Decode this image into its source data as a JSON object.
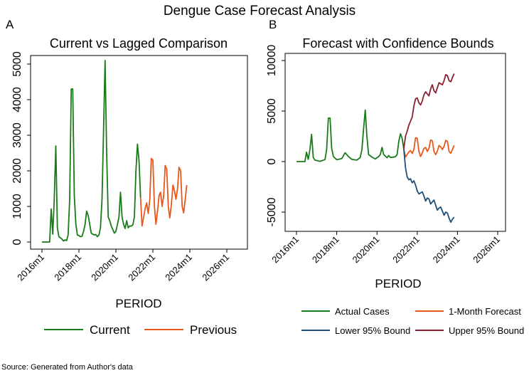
{
  "figure": {
    "title": "Dengue Case Forecast Analysis",
    "source": "Source: Generated from Author's data",
    "colors": {
      "green": "#1a7a1a",
      "orange": "#e8581c",
      "blue": "#1f4e79",
      "maroon": "#8b2030"
    }
  },
  "chart_data": [
    {
      "panel_letter": "A",
      "type": "line",
      "title": "Current vs Lagged Comparison",
      "xlabel": "PERIOD",
      "ylabel": "",
      "x_unit": "months since 2016m1",
      "xlim": [
        "2016m1",
        "2026m1"
      ],
      "ylim": [
        0,
        5000
      ],
      "x_ticks": [
        "2016m1",
        "2018m1",
        "2020m1",
        "2022m1",
        "2024m1",
        "2026m1"
      ],
      "y_ticks": [
        "0",
        "1000",
        "2000",
        "3000",
        "4000",
        "5000"
      ],
      "grid": false,
      "legend": "bottom",
      "series": [
        {
          "name": "Current",
          "color": "#1a7a1a",
          "points": [
            [
              "2016m1",
              0
            ],
            [
              "2016m4",
              0
            ],
            [
              "2016m6",
              0
            ],
            [
              "2016m7",
              930
            ],
            [
              "2016m8",
              220
            ],
            [
              "2016m9",
              1200
            ],
            [
              "2016m10",
              2700
            ],
            [
              "2016m11",
              400
            ],
            [
              "2016m12",
              150
            ],
            [
              "2017m1",
              120
            ],
            [
              "2017m2",
              80
            ],
            [
              "2017m3",
              30
            ],
            [
              "2017m4",
              60
            ],
            [
              "2017m5",
              40
            ],
            [
              "2017m6",
              200
            ],
            [
              "2017m7",
              1200
            ],
            [
              "2017m8",
              4300
            ],
            [
              "2017m9",
              4300
            ],
            [
              "2017m10",
              1300
            ],
            [
              "2017m11",
              500
            ],
            [
              "2017m12",
              200
            ],
            [
              "2018m1",
              180
            ],
            [
              "2018m2",
              150
            ],
            [
              "2018m3",
              160
            ],
            [
              "2018m4",
              300
            ],
            [
              "2018m5",
              500
            ],
            [
              "2018m6",
              870
            ],
            [
              "2018m7",
              750
            ],
            [
              "2018m8",
              500
            ],
            [
              "2018m9",
              250
            ],
            [
              "2018m10",
              220
            ],
            [
              "2018m11",
              200
            ],
            [
              "2018m12",
              210
            ],
            [
              "2019m1",
              150
            ],
            [
              "2019m2",
              200
            ],
            [
              "2019m3",
              400
            ],
            [
              "2019m4",
              1200
            ],
            [
              "2019m5",
              3200
            ],
            [
              "2019m6",
              5100
            ],
            [
              "2019m7",
              2500
            ],
            [
              "2019m8",
              700
            ],
            [
              "2019m9",
              600
            ],
            [
              "2019m10",
              450
            ],
            [
              "2019m11",
              350
            ],
            [
              "2019m12",
              250
            ],
            [
              "2020m1",
              300
            ],
            [
              "2020m2",
              500
            ],
            [
              "2020m3",
              700
            ],
            [
              "2020m4",
              1400
            ],
            [
              "2020m5",
              700
            ],
            [
              "2020m6",
              500
            ],
            [
              "2020m7",
              380
            ],
            [
              "2020m8",
              600
            ],
            [
              "2020m9",
              400
            ],
            [
              "2020m10",
              450
            ],
            [
              "2020m11",
              450
            ],
            [
              "2020m12",
              480
            ],
            [
              "2021m1",
              700
            ],
            [
              "2021m2",
              2000
            ],
            [
              "2021m3",
              2750
            ],
            [
              "2021m4",
              2300
            ],
            [
              "2021m5",
              1250
            ]
          ]
        },
        {
          "name": "Previous",
          "color": "#e8581c",
          "points": [
            [
              "2021m5",
              1250
            ],
            [
              "2021m6",
              450
            ],
            [
              "2021m7",
              700
            ],
            [
              "2021m8",
              950
            ],
            [
              "2021m9",
              1100
            ],
            [
              "2021m10",
              800
            ],
            [
              "2021m11",
              1200
            ],
            [
              "2021m12",
              2350
            ],
            [
              "2022m1",
              2300
            ],
            [
              "2022m2",
              1000
            ],
            [
              "2022m3",
              500
            ],
            [
              "2022m4",
              850
            ],
            [
              "2022m5",
              1300
            ],
            [
              "2022m6",
              1400
            ],
            [
              "2022m7",
              1000
            ],
            [
              "2022m8",
              1300
            ],
            [
              "2022m9",
              2150
            ],
            [
              "2022m10",
              2050
            ],
            [
              "2022m11",
              1000
            ],
            [
              "2022m12",
              680
            ],
            [
              "2023m1",
              1050
            ],
            [
              "2023m2",
              1600
            ],
            [
              "2023m3",
              1450
            ],
            [
              "2023m4",
              1200
            ],
            [
              "2023m5",
              1500
            ],
            [
              "2023m6",
              2100
            ],
            [
              "2023m7",
              2000
            ],
            [
              "2023m8",
              1000
            ],
            [
              "2023m9",
              820
            ],
            [
              "2023m10",
              1200
            ],
            [
              "2023m11",
              1600
            ]
          ]
        }
      ]
    },
    {
      "panel_letter": "B",
      "type": "line",
      "title": "Forecast with Confidence Bounds",
      "xlabel": "PERIOD",
      "ylabel": "",
      "x_unit": "months since 2016m1",
      "xlim": [
        "2016m1",
        "2026m1"
      ],
      "ylim": [
        -6000,
        10000
      ],
      "x_ticks": [
        "2016m1",
        "2018m1",
        "2020m1",
        "2022m1",
        "2024m1",
        "2026m1"
      ],
      "y_ticks": [
        "-5000",
        "0",
        "5000",
        "10000"
      ],
      "grid": false,
      "legend": "bottom",
      "series": [
        {
          "name": "Actual Cases",
          "color": "#1a7a1a",
          "points": [
            [
              "2016m1",
              0
            ],
            [
              "2016m6",
              0
            ],
            [
              "2016m7",
              930
            ],
            [
              "2016m8",
              220
            ],
            [
              "2016m9",
              1200
            ],
            [
              "2016m10",
              2700
            ],
            [
              "2016m11",
              400
            ],
            [
              "2016m12",
              150
            ],
            [
              "2017m3",
              30
            ],
            [
              "2017m6",
              200
            ],
            [
              "2017m7",
              1200
            ],
            [
              "2017m8",
              4300
            ],
            [
              "2017m9",
              4300
            ],
            [
              "2017m10",
              1300
            ],
            [
              "2017m11",
              500
            ],
            [
              "2018m1",
              180
            ],
            [
              "2018m4",
              300
            ],
            [
              "2018m6",
              870
            ],
            [
              "2018m8",
              500
            ],
            [
              "2018m10",
              220
            ],
            [
              "2019m1",
              150
            ],
            [
              "2019m3",
              400
            ],
            [
              "2019m4",
              1200
            ],
            [
              "2019m5",
              3200
            ],
            [
              "2019m6",
              5100
            ],
            [
              "2019m7",
              2500
            ],
            [
              "2019m8",
              700
            ],
            [
              "2019m10",
              450
            ],
            [
              "2019m12",
              250
            ],
            [
              "2020m2",
              500
            ],
            [
              "2020m3",
              700
            ],
            [
              "2020m4",
              1400
            ],
            [
              "2020m5",
              700
            ],
            [
              "2020m7",
              380
            ],
            [
              "2020m8",
              600
            ],
            [
              "2020m9",
              400
            ],
            [
              "2020m12",
              480
            ],
            [
              "2021m1",
              700
            ],
            [
              "2021m2",
              2000
            ],
            [
              "2021m3",
              2750
            ],
            [
              "2021m4",
              2300
            ],
            [
              "2021m5",
              1250
            ]
          ]
        },
        {
          "name": "1-Month Forecast",
          "color": "#e8581c",
          "points": [
            [
              "2021m5",
              1250
            ],
            [
              "2021m6",
              450
            ],
            [
              "2021m7",
              700
            ],
            [
              "2021m8",
              950
            ],
            [
              "2021m9",
              1100
            ],
            [
              "2021m10",
              800
            ],
            [
              "2021m11",
              1200
            ],
            [
              "2021m12",
              2350
            ],
            [
              "2022m1",
              2300
            ],
            [
              "2022m2",
              1000
            ],
            [
              "2022m3",
              500
            ],
            [
              "2022m4",
              850
            ],
            [
              "2022m5",
              1300
            ],
            [
              "2022m6",
              1400
            ],
            [
              "2022m7",
              1000
            ],
            [
              "2022m8",
              1300
            ],
            [
              "2022m9",
              2150
            ],
            [
              "2022m10",
              2050
            ],
            [
              "2022m11",
              1000
            ],
            [
              "2022m12",
              680
            ],
            [
              "2023m1",
              1050
            ],
            [
              "2023m2",
              1600
            ],
            [
              "2023m3",
              1450
            ],
            [
              "2023m4",
              1200
            ],
            [
              "2023m5",
              1500
            ],
            [
              "2023m6",
              2100
            ],
            [
              "2023m7",
              2000
            ],
            [
              "2023m8",
              1000
            ],
            [
              "2023m9",
              820
            ],
            [
              "2023m10",
              1200
            ],
            [
              "2023m11",
              1600
            ]
          ]
        },
        {
          "name": "Lower 95% Bound",
          "color": "#1f4e79",
          "points": [
            [
              "2021m5",
              1250
            ],
            [
              "2021m6",
              -600
            ],
            [
              "2021m7",
              -1500
            ],
            [
              "2021m8",
              -1800
            ],
            [
              "2021m9",
              -1700
            ],
            [
              "2021m10",
              -2100
            ],
            [
              "2021m11",
              -1900
            ],
            [
              "2021m12",
              -2300
            ],
            [
              "2022m1",
              -2900
            ],
            [
              "2022m2",
              -3200
            ],
            [
              "2022m3",
              -3100
            ],
            [
              "2022m4",
              -3000
            ],
            [
              "2022m5",
              -3400
            ],
            [
              "2022m6",
              -3900
            ],
            [
              "2022m7",
              -3600
            ],
            [
              "2022m8",
              -3700
            ],
            [
              "2022m9",
              -4200
            ],
            [
              "2022m10",
              -4000
            ],
            [
              "2022m11",
              -3800
            ],
            [
              "2022m12",
              -4300
            ],
            [
              "2023m1",
              -4800
            ],
            [
              "2023m2",
              -4600
            ],
            [
              "2023m3",
              -4500
            ],
            [
              "2023m4",
              -4900
            ],
            [
              "2023m5",
              -5300
            ],
            [
              "2023m6",
              -5000
            ],
            [
              "2023m7",
              -5100
            ],
            [
              "2023m8",
              -5600
            ],
            [
              "2023m9",
              -6000
            ],
            [
              "2023m10",
              -5700
            ],
            [
              "2023m11",
              -5500
            ]
          ]
        },
        {
          "name": "Upper 95% Bound",
          "color": "#8b2030",
          "points": [
            [
              "2021m5",
              1250
            ],
            [
              "2021m6",
              2500
            ],
            [
              "2021m7",
              3000
            ],
            [
              "2021m8",
              3600
            ],
            [
              "2021m9",
              4000
            ],
            [
              "2021m10",
              4400
            ],
            [
              "2021m11",
              5500
            ],
            [
              "2021m12",
              6200
            ],
            [
              "2022m1",
              6300
            ],
            [
              "2022m2",
              5800
            ],
            [
              "2022m3",
              5600
            ],
            [
              "2022m4",
              6000
            ],
            [
              "2022m5",
              6600
            ],
            [
              "2022m6",
              6900
            ],
            [
              "2022m7",
              6700
            ],
            [
              "2022m8",
              6500
            ],
            [
              "2022m9",
              7200
            ],
            [
              "2022m10",
              7600
            ],
            [
              "2022m11",
              7000
            ],
            [
              "2022m12",
              6800
            ],
            [
              "2023m1",
              7300
            ],
            [
              "2023m2",
              7800
            ],
            [
              "2023m3",
              7700
            ],
            [
              "2023m4",
              7600
            ],
            [
              "2023m5",
              8000
            ],
            [
              "2023m6",
              8600
            ],
            [
              "2023m7",
              8500
            ],
            [
              "2023m8",
              8000
            ],
            [
              "2023m9",
              7900
            ],
            [
              "2023m10",
              8300
            ],
            [
              "2023m11",
              8700
            ]
          ]
        }
      ]
    }
  ]
}
